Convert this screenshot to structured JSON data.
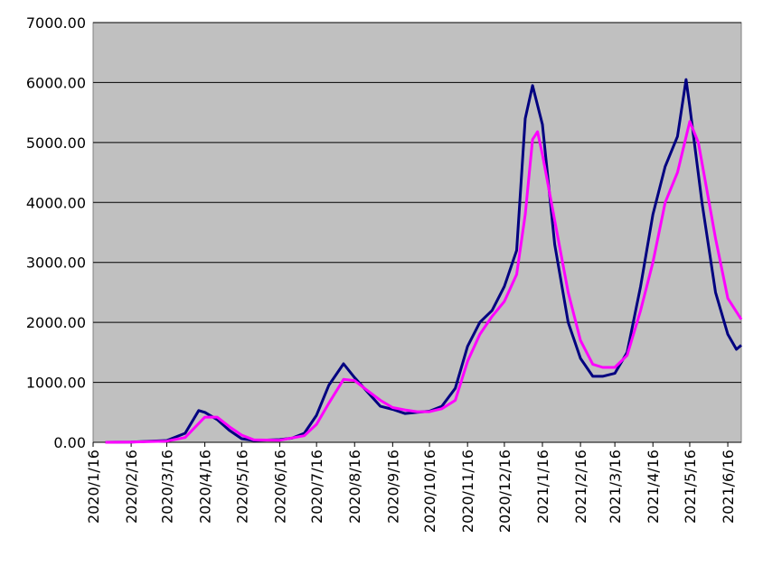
{
  "chart_data": {
    "type": "line",
    "xlim": [
      "2020/1/16",
      "2021/6/27"
    ],
    "xticks": [
      "2020/1/16",
      "2020/2/16",
      "2020/3/16",
      "2020/4/16",
      "2020/5/16",
      "2020/6/16",
      "2020/7/16",
      "2020/8/16",
      "2020/9/16",
      "2020/10/16",
      "2020/11/16",
      "2020/12/16",
      "2021/1/16",
      "2021/2/16",
      "2021/3/16",
      "2021/4/16",
      "2021/5/16",
      "2021/6/16"
    ],
    "ylim": [
      0,
      7000
    ],
    "yticks": [
      {
        "value": 0,
        "label": "0.00"
      },
      {
        "value": 1000,
        "label": "1000.00"
      },
      {
        "value": 2000,
        "label": "2000.00"
      },
      {
        "value": 3000,
        "label": "3000.00"
      },
      {
        "value": 4000,
        "label": "4000.00"
      },
      {
        "value": 5000,
        "label": "5000.00"
      },
      {
        "value": 6000,
        "label": "6000.00"
      },
      {
        "value": 7000,
        "label": "7000.00"
      }
    ],
    "grid": true,
    "series": [
      {
        "color": "#000080",
        "x": [
          "2020/1/26",
          "2020/2/16",
          "2020/3/16",
          "2020/3/31",
          "2020/4/11",
          "2020/4/16",
          "2020/4/26",
          "2020/5/6",
          "2020/5/16",
          "2020/5/26",
          "2020/6/16",
          "2020/6/26",
          "2020/7/6",
          "2020/7/16",
          "2020/7/26",
          "2020/8/7",
          "2020/8/16",
          "2020/8/26",
          "2020/9/6",
          "2020/9/16",
          "2020/9/26",
          "2020/10/6",
          "2020/10/16",
          "2020/10/26",
          "2020/11/6",
          "2020/11/16",
          "2020/11/26",
          "2020/12/6",
          "2020/12/16",
          "2020/12/26",
          "2021/1/2",
          "2021/1/8",
          "2021/1/16",
          "2021/1/26",
          "2021/2/6",
          "2021/2/16",
          "2021/2/26",
          "2021/3/6",
          "2021/3/16",
          "2021/3/26",
          "2021/4/6",
          "2021/4/16",
          "2021/4/26",
          "2021/5/6",
          "2021/5/13",
          "2021/5/16",
          "2021/5/26",
          "2021/6/6",
          "2021/6/16",
          "2021/6/23",
          "2021/6/27"
        ],
        "values": [
          0,
          5,
          30,
          150,
          530,
          500,
          380,
          200,
          60,
          30,
          45,
          70,
          150,
          450,
          950,
          1310,
          1080,
          850,
          600,
          550,
          480,
          500,
          520,
          600,
          900,
          1600,
          2000,
          2200,
          2600,
          3200,
          5400,
          5950,
          5300,
          3300,
          2000,
          1400,
          1100,
          1100,
          1150,
          1500,
          2600,
          3800,
          4600,
          5100,
          6050,
          5600,
          4000,
          2500,
          1800,
          1550,
          1620
        ]
      },
      {
        "color": "#ff00ff",
        "x": [
          "2020/1/26",
          "2020/2/16",
          "2020/3/16",
          "2020/3/31",
          "2020/4/16",
          "2020/4/26",
          "2020/5/6",
          "2020/5/16",
          "2020/5/26",
          "2020/6/16",
          "2020/7/6",
          "2020/7/16",
          "2020/7/26",
          "2020/8/7",
          "2020/8/16",
          "2020/8/26",
          "2020/9/6",
          "2020/9/16",
          "2020/9/26",
          "2020/10/6",
          "2020/10/16",
          "2020/10/26",
          "2020/11/6",
          "2020/11/16",
          "2020/11/26",
          "2020/12/6",
          "2020/12/16",
          "2020/12/26",
          "2021/1/2",
          "2021/1/8",
          "2021/1/12",
          "2021/1/16",
          "2021/1/26",
          "2021/2/6",
          "2021/2/16",
          "2021/2/26",
          "2021/3/6",
          "2021/3/16",
          "2021/3/26",
          "2021/4/6",
          "2021/4/16",
          "2021/4/26",
          "2021/5/6",
          "2021/5/16",
          "2021/5/23",
          "2021/6/6",
          "2021/6/16",
          "2021/6/27"
        ],
        "values": [
          0,
          5,
          20,
          80,
          420,
          420,
          260,
          120,
          40,
          35,
          110,
          300,
          650,
          1050,
          1030,
          870,
          700,
          580,
          540,
          510,
          510,
          560,
          700,
          1350,
          1800,
          2100,
          2350,
          2800,
          3800,
          5050,
          5180,
          4800,
          3700,
          2500,
          1700,
          1300,
          1250,
          1250,
          1450,
          2200,
          3000,
          4000,
          4500,
          5350,
          5000,
          3400,
          2400,
          2050
        ]
      }
    ]
  }
}
